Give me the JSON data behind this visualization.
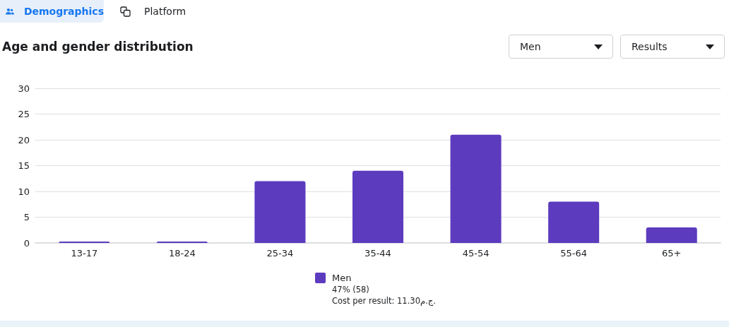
{
  "chart_data": {
    "type": "bar",
    "title": "Age and gender distribution",
    "categories": [
      "13-17",
      "18-24",
      "25-34",
      "35-44",
      "45-54",
      "55-64",
      "65+"
    ],
    "series": [
      {
        "name": "Men",
        "color": "#5c3bbf",
        "values": [
          0,
          0,
          12,
          14,
          21,
          8,
          3
        ]
      }
    ],
    "ylim": [
      0,
      30
    ],
    "yticks": [
      0,
      5,
      10,
      15,
      20,
      25,
      30
    ],
    "grid": "y",
    "legend": "bottom",
    "annotations": [
      "Demographics",
      "Platform",
      "Men",
      "Results",
      "47% (58)",
      "Cost per result: 11.30ج.م."
    ]
  }
}
